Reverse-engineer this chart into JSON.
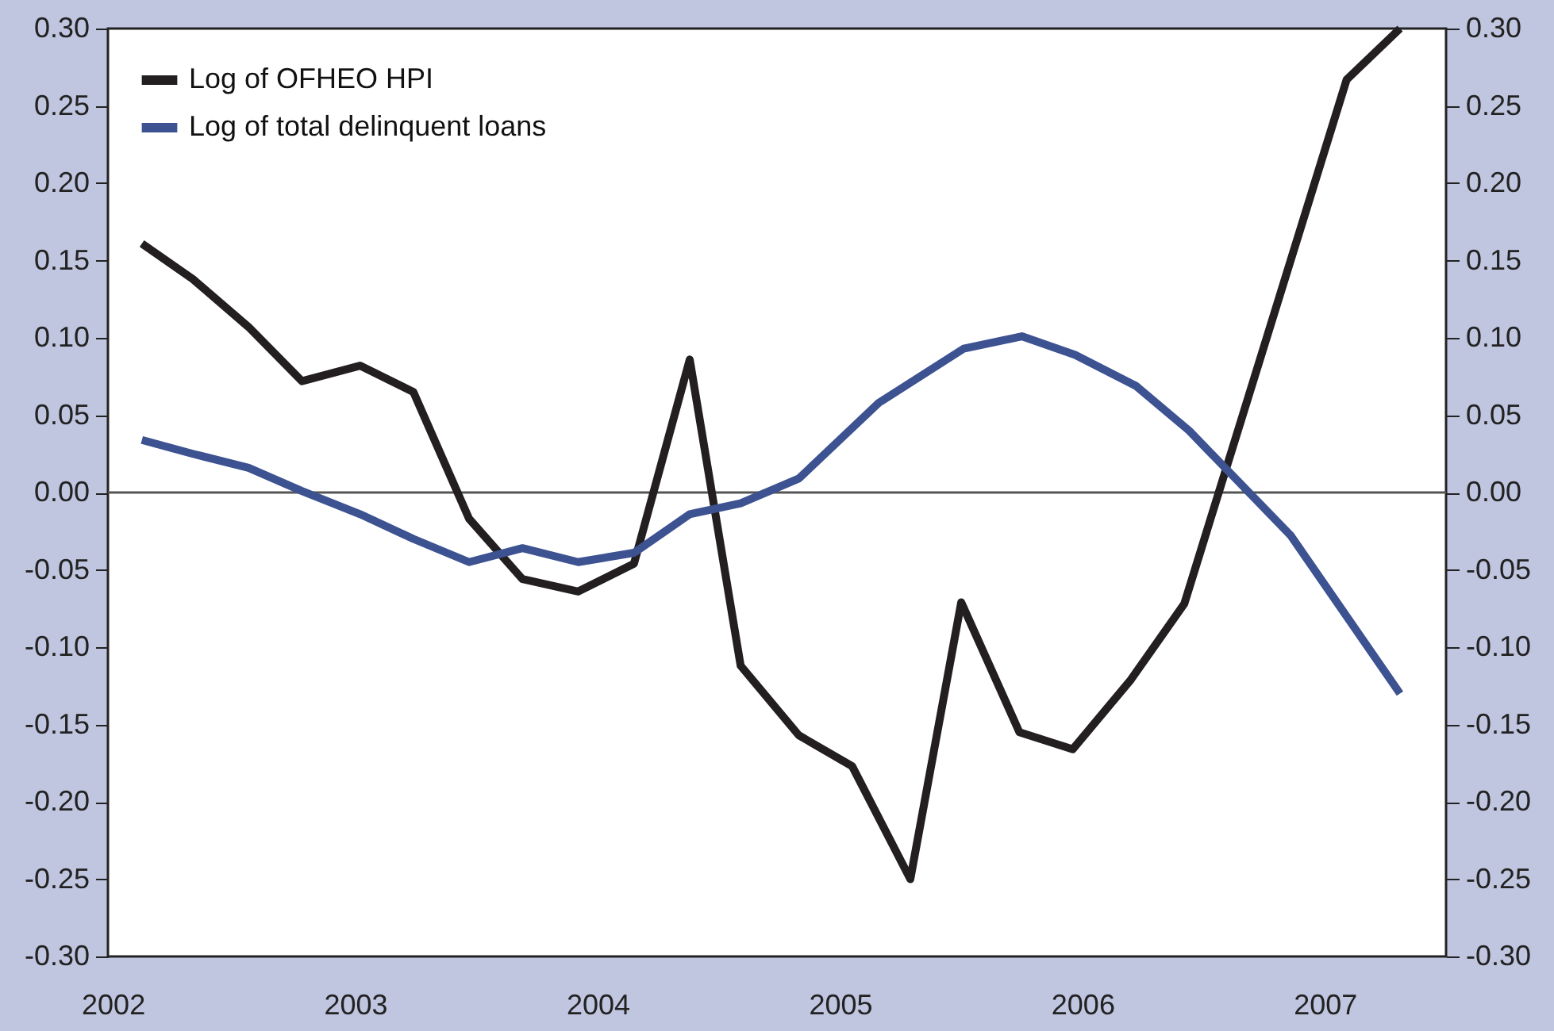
{
  "chart_data": {
    "type": "line",
    "x": [
      2002.12,
      2002.33,
      2002.56,
      2002.78,
      2003.02,
      2003.24,
      2003.47,
      2003.69,
      2003.92,
      2004.15,
      2004.38,
      2004.59,
      2004.83,
      2005.05,
      2005.29,
      2005.5,
      2005.74,
      2005.96,
      2006.2,
      2006.42,
      2007.09,
      2007.31
    ],
    "series": [
      {
        "name": "Log of OFHEO HPI",
        "color": "#231f20",
        "values": [
          0.161,
          0.138,
          0.107,
          0.072,
          0.082,
          0.065,
          -0.017,
          -0.056,
          -0.064,
          -0.046,
          0.086,
          -0.112,
          -0.157,
          -0.177,
          -0.25,
          -0.071,
          -0.155,
          -0.166,
          -0.121,
          -0.072,
          0.267,
          0.3
        ]
      },
      {
        "name": "Log of total delinquent loans",
        "color": "#3d5291",
        "axis": "y2",
        "x": [
          2002.12,
          2002.33,
          2002.56,
          2002.78,
          2003.02,
          2003.24,
          2003.47,
          2003.69,
          2003.92,
          2004.15,
          2004.38,
          2004.59,
          2004.83,
          2005.16,
          2005.51,
          2005.75,
          2005.97,
          2006.22,
          2006.44,
          2006.86,
          2007.31
        ],
        "values": [
          0.034,
          0.025,
          0.016,
          0.001,
          -0.014,
          -0.03,
          -0.045,
          -0.036,
          -0.045,
          -0.039,
          -0.014,
          -0.007,
          0.009,
          0.058,
          0.093,
          0.101,
          0.089,
          0.069,
          0.04,
          -0.028,
          -0.13
        ]
      }
    ],
    "xlim": [
      2001.98,
      2007.5
    ],
    "xticks": [
      2002,
      2003,
      2004,
      2005,
      2006,
      2007
    ],
    "ylim": [
      -0.3,
      0.3
    ],
    "yticks": [
      {
        "value": 0.3,
        "label": "0.30"
      },
      {
        "value": 0.25,
        "label": "0.25"
      },
      {
        "value": 0.2,
        "label": "0.20"
      },
      {
        "value": 0.15,
        "label": "0.15"
      },
      {
        "value": 0.1,
        "label": "0.10"
      },
      {
        "value": 0.05,
        "label": "0.05"
      },
      {
        "value": 0,
        "label": "0.00"
      },
      {
        "value": -0.05,
        "label": "-0.05"
      },
      {
        "value": -0.1,
        "label": "-0.10"
      },
      {
        "value": -0.15,
        "label": "-0.15"
      },
      {
        "value": -0.2,
        "label": "-0.20"
      },
      {
        "value": -0.25,
        "label": "-0.25"
      },
      {
        "value": -0.3,
        "label": "-0.30"
      }
    ],
    "y2lim": [
      -0.3,
      0.3
    ],
    "y2ticks": [
      {
        "value": 0.3,
        "label": "0.30"
      },
      {
        "value": 0.25,
        "label": "0.25"
      },
      {
        "value": 0.2,
        "label": "0.20"
      },
      {
        "value": 0.15,
        "label": "0.15"
      },
      {
        "value": 0.1,
        "label": "0.10"
      },
      {
        "value": 0.05,
        "label": "0.05"
      },
      {
        "value": 0,
        "label": "0.00"
      },
      {
        "value": -0.05,
        "label": "-0.05"
      },
      {
        "value": -0.1,
        "label": "-0.10"
      },
      {
        "value": -0.15,
        "label": "-0.15"
      },
      {
        "value": -0.2,
        "label": "-0.20"
      },
      {
        "value": -0.25,
        "label": "-0.25"
      },
      {
        "value": -0.3,
        "label": "-0.30"
      }
    ],
    "ref_lines": [
      {
        "axis": "y",
        "value": 0,
        "color": "#555555"
      }
    ],
    "grid": false,
    "legend": "top left",
    "line_style": "solid"
  }
}
